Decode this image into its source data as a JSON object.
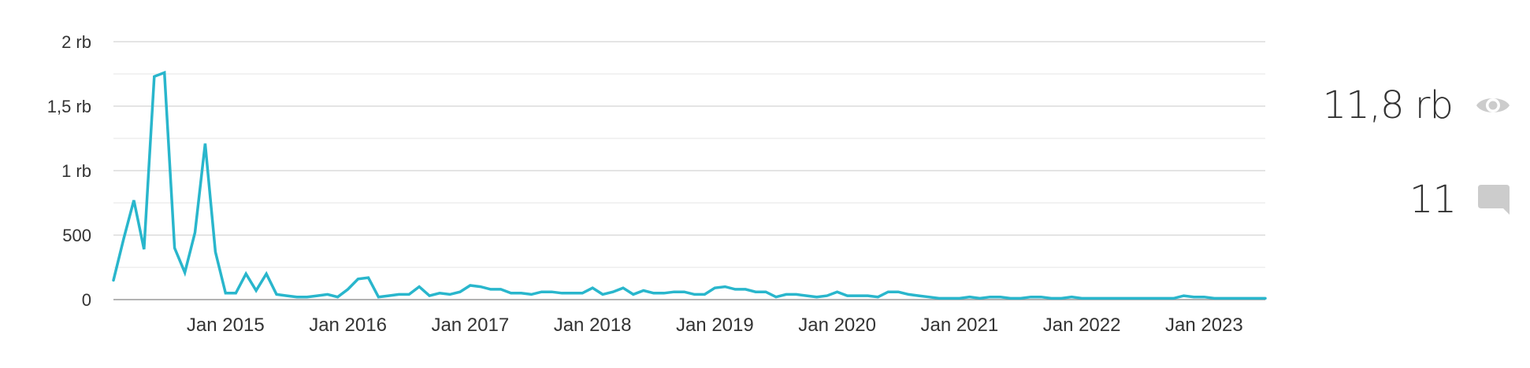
{
  "chart_data": {
    "type": "line",
    "series": [
      {
        "values": [
          150,
          470,
          770,
          390,
          1730,
          1760,
          400,
          210,
          520,
          1210,
          370,
          50,
          50,
          200,
          70,
          200,
          40,
          30,
          20,
          20,
          30,
          40,
          20,
          80,
          160,
          170,
          20,
          30,
          40,
          40,
          100,
          30,
          50,
          40,
          60,
          110,
          100,
          80,
          80,
          50,
          50,
          40,
          60,
          60,
          50,
          50,
          50,
          90,
          40,
          60,
          90,
          40,
          70,
          50,
          50,
          60,
          60,
          40,
          40,
          90,
          100,
          80,
          80,
          60,
          60,
          20,
          40,
          40,
          30,
          20,
          30,
          60,
          30,
          30,
          30,
          20,
          60,
          60,
          40,
          30,
          20,
          10,
          10,
          10,
          20,
          10,
          20,
          20,
          10,
          10,
          20,
          20,
          10,
          10,
          20,
          10,
          10,
          10,
          10,
          10,
          10,
          10,
          10,
          10,
          10,
          30,
          20,
          20,
          10,
          10,
          10,
          10,
          10,
          10
        ]
      }
    ],
    "xticks": [
      "Jan 2015",
      "Jan 2016",
      "Jan 2017",
      "Jan 2018",
      "Jan 2019",
      "Jan 2020",
      "Jan 2021",
      "Jan 2022",
      "Jan 2023"
    ],
    "yticks": [
      {
        "value": 0,
        "label": "0"
      },
      {
        "value": 500,
        "label": "500"
      },
      {
        "value": 1000,
        "label": "1 rb"
      },
      {
        "value": 1500,
        "label": "1,5 rb"
      },
      {
        "value": 2000,
        "label": "2 rb"
      }
    ],
    "ylim": [
      0,
      2000
    ],
    "grid": true,
    "color": "#29b6cc",
    "grid_color": "#c8c8c8",
    "minor_grid_color": "#e4e4e4"
  },
  "stats": {
    "views": {
      "value": "11,8 rb",
      "icon": "eye-icon"
    },
    "comments": {
      "value": "11",
      "icon": "comment-icon"
    },
    "icon_color": "#cccccc"
  }
}
